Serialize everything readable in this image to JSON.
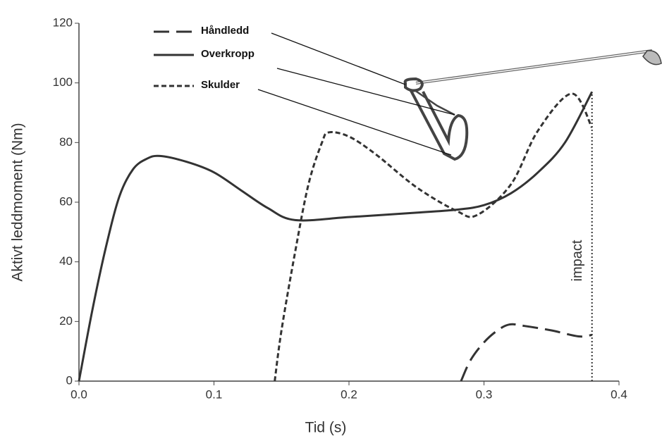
{
  "chart_data": {
    "type": "line",
    "y_label": "Aktivt leddmoment (Nm)",
    "x_label": "Tid (s)",
    "xlim": [
      0,
      0.4
    ],
    "xticks": [
      {
        "value": 0,
        "label": "0.0"
      },
      0.1,
      0.2,
      0.3,
      0.4
    ],
    "ylim": [
      0,
      120
    ],
    "yticks": [
      0,
      20,
      40,
      60,
      80,
      100,
      120
    ],
    "grid": false,
    "legend": "top-left",
    "series": [
      {
        "name": "Håndledd",
        "color": "#333333",
        "style": "long-dash",
        "x": [
          0.283,
          0.29,
          0.3,
          0.31,
          0.319,
          0.33,
          0.35,
          0.37,
          0.38
        ],
        "values": [
          0,
          7,
          13,
          17,
          19,
          18.5,
          17,
          15,
          15.5
        ]
      },
      {
        "name": "Overkropp",
        "color": "#333333",
        "style": "solid",
        "x": [
          0,
          0.01,
          0.02,
          0.03,
          0.04,
          0.05,
          0.06,
          0.08,
          0.1,
          0.12,
          0.14,
          0.16,
          0.2,
          0.25,
          0.28,
          0.3,
          0.32,
          0.34,
          0.36,
          0.38
        ],
        "values": [
          0,
          24,
          45,
          62,
          71,
          74.5,
          75.5,
          73.5,
          70,
          64,
          58,
          54,
          55,
          56.5,
          57.5,
          59,
          63,
          70,
          80,
          97
        ]
      },
      {
        "name": "Skulder",
        "color": "#333333",
        "style": "short-dash",
        "x": [
          0.145,
          0.15,
          0.16,
          0.17,
          0.18,
          0.185,
          0.2,
          0.22,
          0.25,
          0.28,
          0.295,
          0.32,
          0.34,
          0.365,
          0.38
        ],
        "values": [
          0,
          17,
          43,
          66,
          80,
          83.4,
          82,
          76,
          65,
          57,
          55.7,
          66,
          84,
          96.4,
          85
        ]
      }
    ],
    "annotation": {
      "text": "impact",
      "x": 0.38
    }
  }
}
